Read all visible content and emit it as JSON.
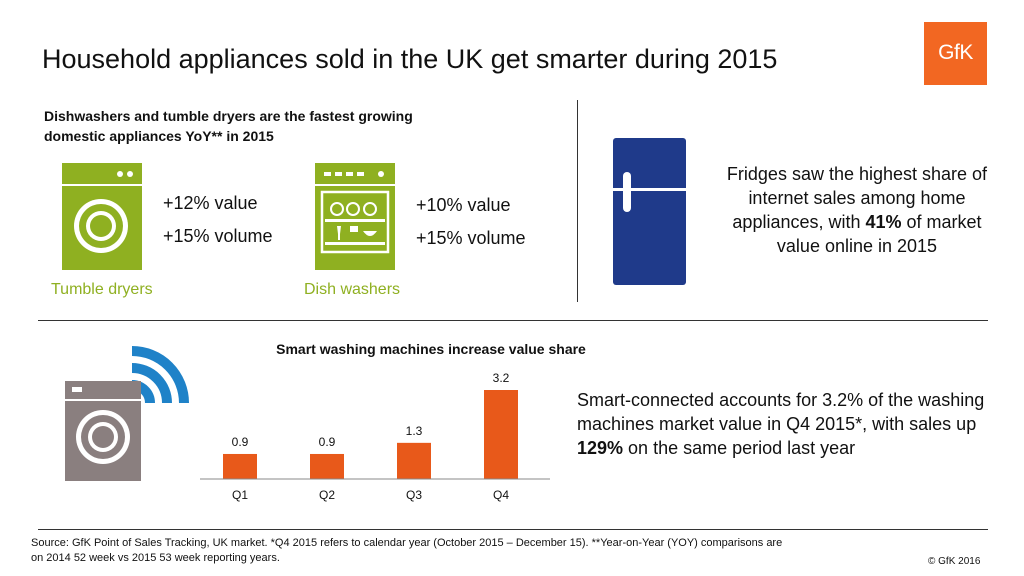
{
  "header": {
    "title": "Household appliances sold in the UK get smarter during 2015",
    "logo_text": "GfK"
  },
  "dryers_dishwashers": {
    "heading_line1": "Dishwashers and tumble dryers are the fastest growing",
    "heading_line2": "domestic appliances YoY** in 2015",
    "tumble_dryers": {
      "value_stat": "+12% value",
      "volume_stat": "+15% volume",
      "label": "Tumble dryers",
      "icon": "tumble-dryer-icon"
    },
    "dish_washers": {
      "value_stat": "+10% value",
      "volume_stat": "+15% volume",
      "label": "Dish washers",
      "icon": "dishwasher-icon"
    }
  },
  "fridges": {
    "icon": "fridge-icon",
    "text_before": "Fridges saw the highest share of internet sales among home appliances, with ",
    "text_bold": "41%",
    "text_after": " of market value online in 2015"
  },
  "smart": {
    "icon": "smart-washing-machine-icon",
    "text_before": "Smart-connected accounts for 3.2% of the washing machines market value in Q4 2015*, with sales up ",
    "text_bold": "129%",
    "text_after": " on the same period last year"
  },
  "chart_data": {
    "type": "bar",
    "title": "Smart washing machines increase value share",
    "categories": [
      "Q1",
      "Q2",
      "Q3",
      "Q4"
    ],
    "values": [
      0.9,
      0.9,
      1.3,
      3.2
    ],
    "value_labels": [
      "0.9",
      "0.9",
      "1.3",
      "3.2"
    ],
    "xlabel": "",
    "ylabel": "",
    "ylim": [
      0,
      3.2
    ],
    "grid": false,
    "legend": "none",
    "bar_color": "#e8591a"
  },
  "footer": {
    "source_line1": "Source: GfK Point of Sales Tracking, UK market. *Q4 2015 refers to calendar year (October 2015 – December 15). **Year-on-Year (YOY)  comparisons are",
    "source_line2": "on   2014 52 week vs 2015 53 week reporting years.",
    "copyright": "© GfK 2016"
  },
  "colors": {
    "accent_orange": "#f26722",
    "appliance_green": "#8fb021",
    "fridge_blue": "#1f3a8a",
    "wifi_blue": "#1f82c8",
    "machine_gray": "#8a7f7f"
  }
}
